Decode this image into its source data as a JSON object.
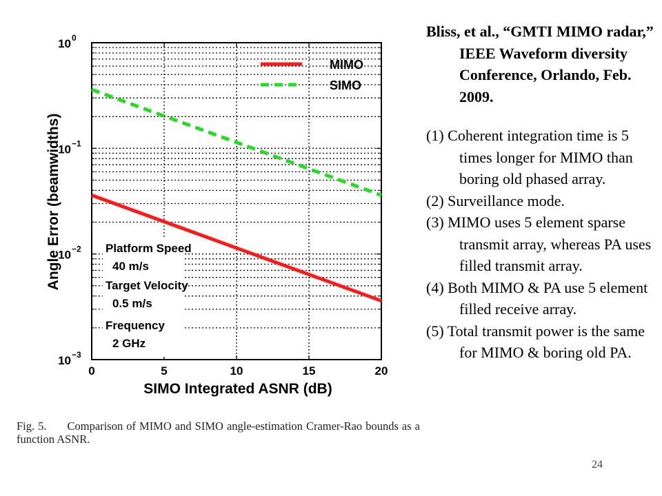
{
  "figure": {
    "caption": {
      "label": "Fig. 5.",
      "text": "Comparison of MIMO and SIMO angle-estimation Cramer-Rao bounds as a function ASNR."
    }
  },
  "chart_data": {
    "type": "line",
    "title": "",
    "xlabel": "SIMO Integrated ASNR (dB)",
    "ylabel": "Angle Error (beamwidths)",
    "x_scale": "linear",
    "y_scale": "log",
    "xlim": [
      0,
      20
    ],
    "ylim": [
      0.001,
      1
    ],
    "x_ticks": [
      0,
      5,
      10,
      15,
      20
    ],
    "y_ticks": [
      {
        "value": 0.001,
        "base": "10",
        "exp": "−3"
      },
      {
        "value": 0.01,
        "base": "10",
        "exp": "−2"
      },
      {
        "value": 0.1,
        "base": "10",
        "exp": "−1"
      },
      {
        "value": 1,
        "base": "10",
        "exp": "0"
      }
    ],
    "grid": true,
    "legend_position": "top-right",
    "series": [
      {
        "name": "MIMO",
        "color": "#ff1a1a",
        "dash": "solid",
        "x": [
          0,
          20
        ],
        "y": [
          0.036,
          0.0036
        ]
      },
      {
        "name": "SIMO",
        "color": "#22dd22",
        "dash": "dashed",
        "x": [
          0,
          20
        ],
        "y": [
          0.36,
          0.036
        ]
      }
    ],
    "annotations": [
      "Platform Speed",
      "40 m/s",
      "Target Velocity",
      "0.5 m/s",
      "Frequency",
      "2 GHz"
    ]
  },
  "citation": "Bliss, et al., “GMTI MIMO radar,” IEEE Waveform diversity Conference, Orlando, Feb. 2009.",
  "notes": [
    "(1) Coherent integration time is 5 times longer for MIMO than boring old phased array.",
    "(2) Surveillance mode.",
    "(3) MIMO uses 5 element sparse transmit array, whereas PA uses filled transmit array.",
    "(4) Both MIMO & PA use 5 element filled receive array.",
    "(5) Total transmit power is the same for MIMO & boring old PA."
  ],
  "slide_number": "24"
}
